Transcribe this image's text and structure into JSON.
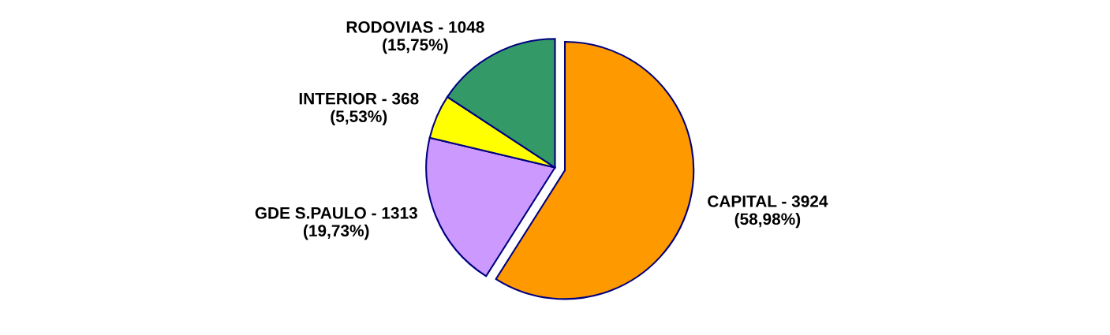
{
  "chart_data": {
    "type": "pie",
    "categories": [
      "CAPITAL - 3924",
      "GDE S.PAULO - 1313",
      "INTERIOR - 368",
      "RODOVIAS - 1048"
    ],
    "values": [
      58.98,
      19.73,
      5.53,
      15.75
    ],
    "value_labels": [
      "(58,98%)",
      "(19,73%)",
      "(5,53%)",
      "(15,75%)"
    ],
    "colors": [
      "#ff9900",
      "#cc99ff",
      "#ffff00",
      "#339966"
    ],
    "legend": false
  }
}
